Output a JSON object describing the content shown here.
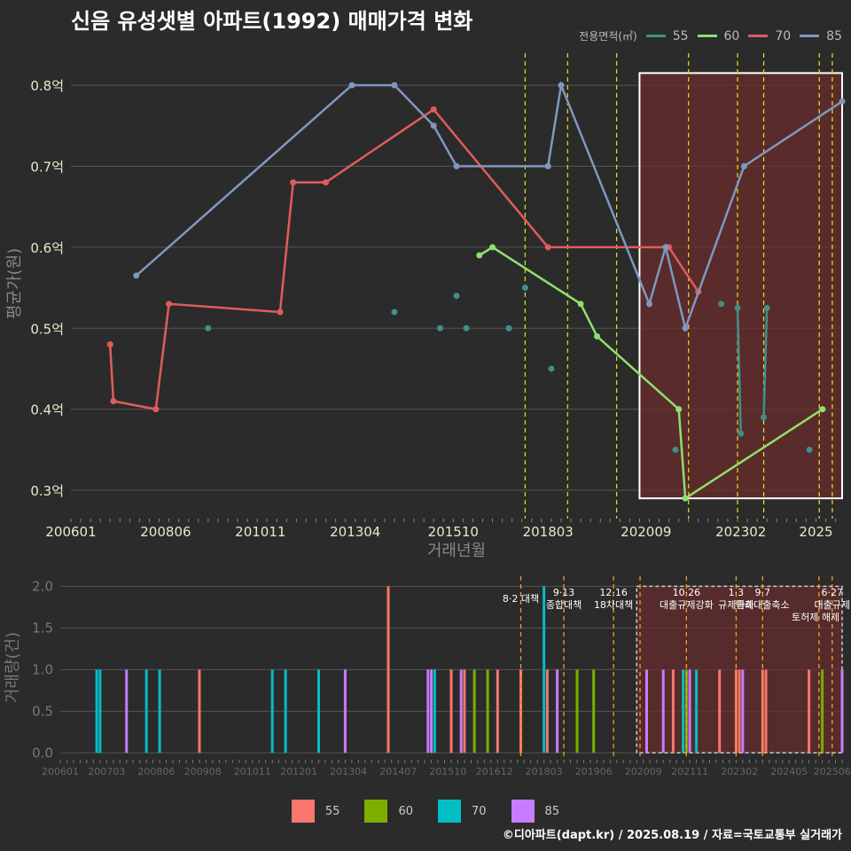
{
  "title": "신음 유성샛별 아파트(1992) 매매가격 변화",
  "credit": "©디아파트(dapt.kr) / 2025.08.19 / 자료=국토교통부 실거래가",
  "colors": {
    "55": "#3f8f8b",
    "60": "#8fe06a",
    "70": "#e05c5c",
    "85": "#7f98bf",
    "bar55": "#f8766d",
    "bar60": "#7cae00",
    "bar70": "#00bfc4",
    "bar85": "#c77cff",
    "policy": "#e6e61a",
    "policy_bar": "#f0a020",
    "box": "#5a2a2a"
  },
  "legend_top": {
    "title": "전용면적(㎡)",
    "items": [
      "55",
      "60",
      "70",
      "85"
    ]
  },
  "legend_bottom": {
    "items": [
      "55",
      "60",
      "70",
      "85"
    ]
  },
  "chart_data": [
    {
      "type": "line",
      "ylabel": "평균가(원)",
      "xlabel": "거래년월",
      "ylim": [
        0.265,
        0.845
      ],
      "yticks": [
        {
          "v": 0.3,
          "label": "0.3억"
        },
        {
          "v": 0.4,
          "label": "0.4억"
        },
        {
          "v": 0.5,
          "label": "0.5억"
        },
        {
          "v": 0.6,
          "label": "0.6억"
        },
        {
          "v": 0.7,
          "label": "0.7억"
        },
        {
          "v": 0.8,
          "label": "0.8억"
        }
      ],
      "xlim": [
        "2006-01",
        "2025-09"
      ],
      "xticks": [
        "200601",
        "200806",
        "201011",
        "201304",
        "201510",
        "201803",
        "202009",
        "202302",
        "2025"
      ],
      "series": [
        {
          "name": "55",
          "connect": false,
          "points": [
            [
              "2009-07",
              0.5
            ],
            [
              "2014-04",
              0.52
            ],
            [
              "2015-06",
              0.5
            ],
            [
              "2015-11",
              0.54
            ],
            [
              "2016-02",
              0.5
            ],
            [
              "2017-03",
              0.5
            ],
            [
              "2017-08",
              0.55
            ],
            [
              "2018-04",
              0.45
            ],
            [
              "2021-06",
              0.35
            ],
            [
              "2022-08",
              0.53
            ],
            [
              "2023-01",
              0.525
            ],
            [
              "2023-02",
              0.37
            ],
            [
              "2023-09",
              0.39
            ],
            [
              "2023-10",
              0.525
            ],
            [
              "2024-11",
              0.35
            ]
          ]
        },
        {
          "name": "60",
          "connect": true,
          "points": [
            [
              "2016-06",
              0.59
            ],
            [
              "2016-10",
              0.6
            ],
            [
              "2019-01",
              0.53
            ],
            [
              "2019-06",
              0.49
            ],
            [
              "2021-07",
              0.4
            ],
            [
              "2021-09",
              0.29
            ],
            [
              "2025-03",
              0.4
            ]
          ]
        },
        {
          "name": "70",
          "connect": true,
          "points": [
            [
              "2007-01",
              0.48
            ],
            [
              "2007-02",
              0.41
            ],
            [
              "2008-03",
              0.4
            ],
            [
              "2008-07",
              0.53
            ],
            [
              "2011-05",
              0.52
            ],
            [
              "2011-09",
              0.68
            ],
            [
              "2012-07",
              0.68
            ],
            [
              "2015-04",
              0.77
            ],
            [
              "2018-03",
              0.6
            ],
            [
              "2021-04",
              0.6
            ],
            [
              "2022-01",
              0.545
            ]
          ]
        },
        {
          "name": "85",
          "connect": true,
          "points": [
            [
              "2007-09",
              0.565
            ],
            [
              "2013-03",
              0.8
            ],
            [
              "2014-04",
              0.8
            ],
            [
              "2015-04",
              0.75
            ],
            [
              "2015-11",
              0.7
            ],
            [
              "2018-03",
              0.7
            ],
            [
              "2018-07",
              0.8
            ],
            [
              "2020-10",
              0.53
            ],
            [
              "2021-03",
              0.6
            ],
            [
              "2021-09",
              0.5
            ],
            [
              "2023-03",
              0.7
            ],
            [
              "2025-09",
              0.78
            ]
          ]
        }
      ],
      "policy_lines": [
        "2017-08",
        "2018-09",
        "2019-12",
        "2021-10",
        "2023-01",
        "2023-09",
        "2025-02",
        "2025-06"
      ],
      "highlight_range": [
        "2020-07",
        "2025-09"
      ]
    },
    {
      "type": "bar",
      "ylabel": "거래량(건)",
      "ylim": [
        -0.05,
        2.1
      ],
      "yticks": [
        {
          "v": 0.0,
          "label": "0.0"
        },
        {
          "v": 0.5,
          "label": "0.5"
        },
        {
          "v": 1.0,
          "label": "1.0"
        },
        {
          "v": 1.5,
          "label": "1.5"
        },
        {
          "v": 2.0,
          "label": "2.0"
        }
      ],
      "xlim": [
        "2006-01",
        "2025-09"
      ],
      "xticks": [
        "200601",
        "200703",
        "200806",
        "200908",
        "201011",
        "201201",
        "201304",
        "201407",
        "201510",
        "201612",
        "201803",
        "201906",
        "202009",
        "202111",
        "202302",
        "202405",
        "202506"
      ],
      "bars": [
        {
          "m": "2006-12",
          "s": "70",
          "v": 1
        },
        {
          "m": "2007-01",
          "s": "70",
          "v": 1
        },
        {
          "m": "2007-09",
          "s": "85",
          "v": 1
        },
        {
          "m": "2008-03",
          "s": "70",
          "v": 1
        },
        {
          "m": "2008-07",
          "s": "70",
          "v": 1
        },
        {
          "m": "2009-07",
          "s": "55",
          "v": 1
        },
        {
          "m": "2011-05",
          "s": "70",
          "v": 1
        },
        {
          "m": "2011-09",
          "s": "70",
          "v": 1
        },
        {
          "m": "2012-07",
          "s": "70",
          "v": 1
        },
        {
          "m": "2013-03",
          "s": "85",
          "v": 1
        },
        {
          "m": "2014-04",
          "s": "55",
          "v": 2
        },
        {
          "m": "2015-04",
          "s": "85",
          "v": 1
        },
        {
          "m": "2015-05",
          "s": "85",
          "v": 1
        },
        {
          "m": "2015-06",
          "s": "70",
          "v": 1
        },
        {
          "m": "2015-11",
          "s": "55",
          "v": 1
        },
        {
          "m": "2016-02",
          "s": "85",
          "v": 1
        },
        {
          "m": "2016-03",
          "s": "55",
          "v": 1
        },
        {
          "m": "2016-06",
          "s": "60",
          "v": 1
        },
        {
          "m": "2016-10",
          "s": "60",
          "v": 1
        },
        {
          "m": "2017-01",
          "s": "55",
          "v": 1
        },
        {
          "m": "2017-08",
          "s": "55",
          "v": 1
        },
        {
          "m": "2018-03",
          "s": "70",
          "v": 2
        },
        {
          "m": "2018-04",
          "s": "55",
          "v": 1
        },
        {
          "m": "2018-07",
          "s": "85",
          "v": 1
        },
        {
          "m": "2019-01",
          "s": "60",
          "v": 1
        },
        {
          "m": "2019-06",
          "s": "60",
          "v": 1
        },
        {
          "m": "2020-10",
          "s": "85",
          "v": 1
        },
        {
          "m": "2021-03",
          "s": "85",
          "v": 1
        },
        {
          "m": "2021-06",
          "s": "55",
          "v": 1
        },
        {
          "m": "2021-09",
          "s": "70",
          "v": 1
        },
        {
          "m": "2021-10",
          "s": "60",
          "v": 1
        },
        {
          "m": "2021-11",
          "s": "85",
          "v": 1
        },
        {
          "m": "2022-01",
          "s": "70",
          "v": 1
        },
        {
          "m": "2022-08",
          "s": "55",
          "v": 1
        },
        {
          "m": "2023-01",
          "s": "55",
          "v": 1
        },
        {
          "m": "2023-02",
          "s": "55",
          "v": 1
        },
        {
          "m": "2023-03",
          "s": "85",
          "v": 1
        },
        {
          "m": "2023-09",
          "s": "55",
          "v": 1
        },
        {
          "m": "2023-10",
          "s": "55",
          "v": 1
        },
        {
          "m": "2024-11",
          "s": "55",
          "v": 1
        },
        {
          "m": "2025-03",
          "s": "60",
          "v": 1
        },
        {
          "m": "2025-09",
          "s": "85",
          "v": 1
        }
      ],
      "policy_labels": [
        {
          "m": "2017-08",
          "lines": [
            "8·2 대책"
          ]
        },
        {
          "m": "2018-09",
          "lines": [
            "9·13",
            "종합대책"
          ]
        },
        {
          "m": "2019-12",
          "lines": [
            "12·16",
            "18차대책"
          ]
        },
        {
          "m": "2021-10",
          "lines": [
            "10·26",
            "대출규제강화"
          ]
        },
        {
          "m": "2023-01",
          "lines": [
            "1·3",
            "규제완화"
          ]
        },
        {
          "m": "2023-09",
          "lines": [
            "9·7",
            "특례대출축소"
          ]
        },
        {
          "m": "2025-06",
          "lines": [
            "6·27",
            "대출규제"
          ]
        }
      ],
      "extra_labels": [
        {
          "m": "2025-01",
          "text": "토허제 해제"
        }
      ],
      "policy_lines": [
        "2017-08",
        "2018-09",
        "2019-12",
        "2020-08",
        "2021-10",
        "2023-01",
        "2023-09",
        "2025-02",
        "2025-06"
      ],
      "highlight_range": [
        "2020-07",
        "2025-09"
      ]
    }
  ]
}
